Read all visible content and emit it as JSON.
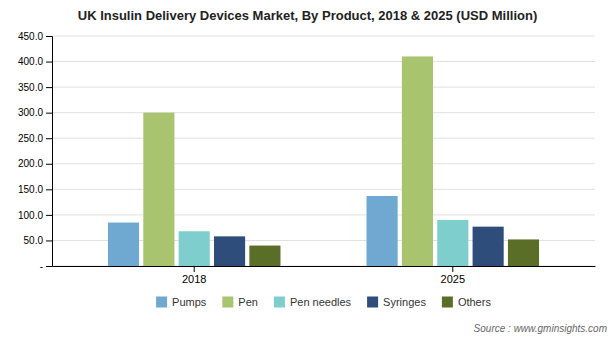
{
  "chart_data": {
    "type": "bar",
    "title": "UK Insulin Delivery Devices Market, By Product, 2018 & 2025 (USD Million)",
    "categories": [
      "2018",
      "2025"
    ],
    "series": [
      {
        "name": "Pumps",
        "color": "#6fa8d0",
        "values": [
          85,
          137
        ]
      },
      {
        "name": "Pen",
        "color": "#a8c46e",
        "values": [
          300,
          410
        ]
      },
      {
        "name": "Pen needles",
        "color": "#7ecece",
        "values": [
          68,
          90
        ]
      },
      {
        "name": "Syringes",
        "color": "#2e4d7b",
        "values": [
          58,
          77
        ]
      },
      {
        "name": "Others",
        "color": "#5a6e28",
        "values": [
          40,
          52
        ]
      }
    ],
    "ylim": [
      0,
      450
    ],
    "yticks": [
      {
        "value": 0,
        "label": "-"
      },
      {
        "value": 50,
        "label": "50.0"
      },
      {
        "value": 100,
        "label": "100.0"
      },
      {
        "value": 150,
        "label": "150.0"
      },
      {
        "value": 200,
        "label": "200.0"
      },
      {
        "value": 250,
        "label": "250.0"
      },
      {
        "value": 300,
        "label": "300.0"
      },
      {
        "value": 350,
        "label": "350.0"
      },
      {
        "value": 400,
        "label": "400.0"
      },
      {
        "value": 450,
        "label": "450.0"
      }
    ],
    "grid": true,
    "legend": "bottom",
    "annotations": [
      "Source : www.gminsights.com"
    ]
  }
}
